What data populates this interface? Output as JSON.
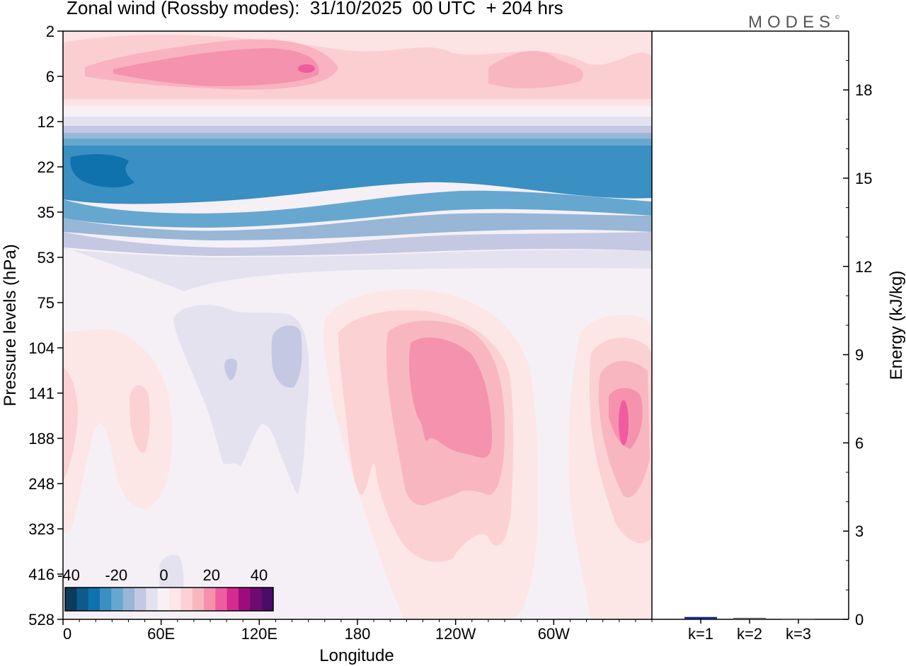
{
  "chart_data": [
    {
      "type": "heatmap",
      "title": "Zonal wind (Rossby modes):  31/10/2025  00 UTC  + 204 hrs",
      "xlabel": "Longitude",
      "ylabel": "Pressure levels (hPa)",
      "x_ticks": [
        "0",
        "60E",
        "120E",
        "180",
        "120W",
        "60W"
      ],
      "x_tick_values": [
        0,
        60,
        120,
        180,
        240,
        300
      ],
      "xlim": [
        0,
        360
      ],
      "y_ticks": [
        "2",
        "6",
        "12",
        "22",
        "35",
        "53",
        "75",
        "104",
        "141",
        "188",
        "248",
        "323",
        "416",
        "528"
      ],
      "colorbar": {
        "tick_labels": [
          "-40",
          "-20",
          "0",
          "20",
          "40"
        ],
        "tick_values": [
          -40,
          -20,
          0,
          20,
          40
        ],
        "range": [
          -40,
          40
        ],
        "colors": [
          "#0b3a5c",
          "#0d5a8c",
          "#0f72ad",
          "#3a8fc3",
          "#66a7d0",
          "#98b6d6",
          "#c4c8e2",
          "#e4e2ef",
          "#f7f0f5",
          "#fde6e6",
          "#fbd1d3",
          "#f8b6c1",
          "#f591ae",
          "#ef5ca0",
          "#d52a8f",
          "#9c0c7c",
          "#6e0a72",
          "#4a0c67"
        ]
      },
      "features": [
        {
          "label": "negative jet core",
          "lon_range": [
            0,
            360
          ],
          "pressure_range_hPa": [
            12,
            53
          ],
          "min_value": -32
        },
        {
          "label": "positive upper layer",
          "lon_range": [
            0,
            360
          ],
          "pressure_range_hPa": [
            2,
            8
          ],
          "max_value": 24
        },
        {
          "label": "positive maximum near 120W",
          "lon": 240,
          "pressure_hPa": 170,
          "max_value": 22
        },
        {
          "label": "positive maximum near 60W",
          "lon": 335,
          "pressure_hPa": 170,
          "max_value": 18
        }
      ]
    },
    {
      "type": "bar",
      "ylabel": "Energy (kJ/kg)",
      "categories": [
        "k=1",
        "k=2",
        "k=3"
      ],
      "values": [
        0.08,
        0.05,
        0.03
      ],
      "ylim": [
        0,
        20
      ],
      "y_ticks": [
        "0",
        "3",
        "6",
        "9",
        "12",
        "15",
        "18"
      ],
      "y_tick_values": [
        0,
        3,
        6,
        9,
        12,
        15,
        18
      ],
      "bar_colors": [
        "#1a237e",
        "#555555",
        "#777777"
      ]
    }
  ],
  "logo": {
    "text": "MODES",
    "mark": "©"
  }
}
